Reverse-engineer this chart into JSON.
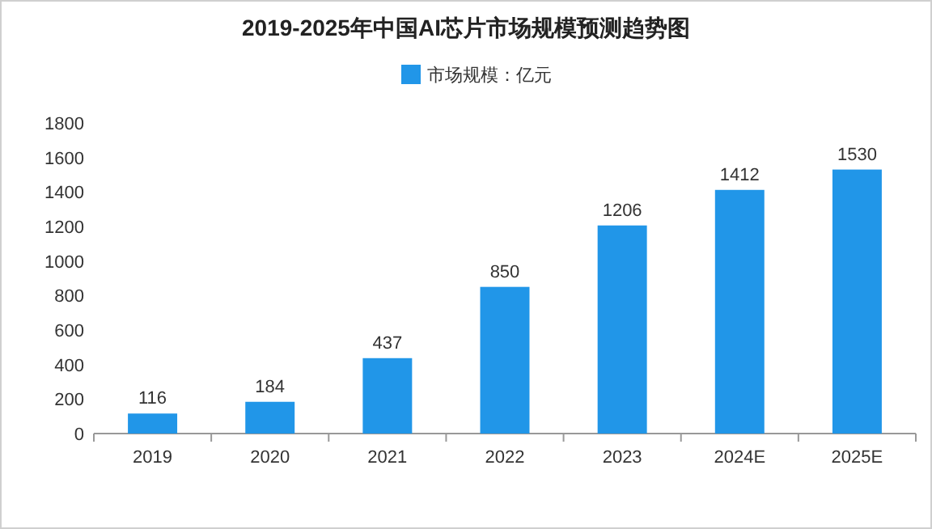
{
  "chart_data": {
    "type": "bar",
    "title": "2019-2025年中国AI芯片市场规模预测趋势图",
    "categories": [
      "2019",
      "2020",
      "2021",
      "2022",
      "2023",
      "2024E",
      "2025E"
    ],
    "series": [
      {
        "name": "市场规模：亿元",
        "color": "#2196e8",
        "values": [
          116,
          184,
          437,
          850,
          1206,
          1412,
          1530
        ]
      }
    ],
    "ylim": [
      0,
      1800
    ],
    "yticks": [
      0,
      200,
      400,
      600,
      800,
      1000,
      1200,
      1400,
      1600,
      1800
    ],
    "data_labels": true,
    "legend": "top",
    "grid": false
  }
}
